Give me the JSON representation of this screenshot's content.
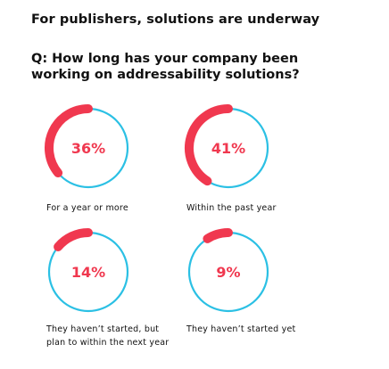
{
  "header": {
    "title": "For publishers, solutions are underway",
    "question_line1": "Q: How long has your company been",
    "question_line2": "working on addressability solutions?"
  },
  "colors": {
    "accent": "#f0384f",
    "ring": "#2bc0e4",
    "text": "#111111"
  },
  "chart_data": {
    "type": "pie",
    "style": "progress-rings",
    "unit": "%",
    "items": [
      {
        "label": "For a year or more",
        "label_lines": [
          "For a year or more"
        ],
        "value": 36,
        "display": "36%"
      },
      {
        "label": "Within the past year",
        "label_lines": [
          "Within the past year"
        ],
        "value": 41,
        "display": "41%"
      },
      {
        "label": "They haven't started, but plan to within the next year",
        "label_lines": [
          "They haven’t started, but",
          "plan to within the next year"
        ],
        "value": 14,
        "display": "14%"
      },
      {
        "label": "They haven't started yet",
        "label_lines": [
          "They haven’t started yet"
        ],
        "value": 9,
        "display": "9%"
      }
    ]
  }
}
